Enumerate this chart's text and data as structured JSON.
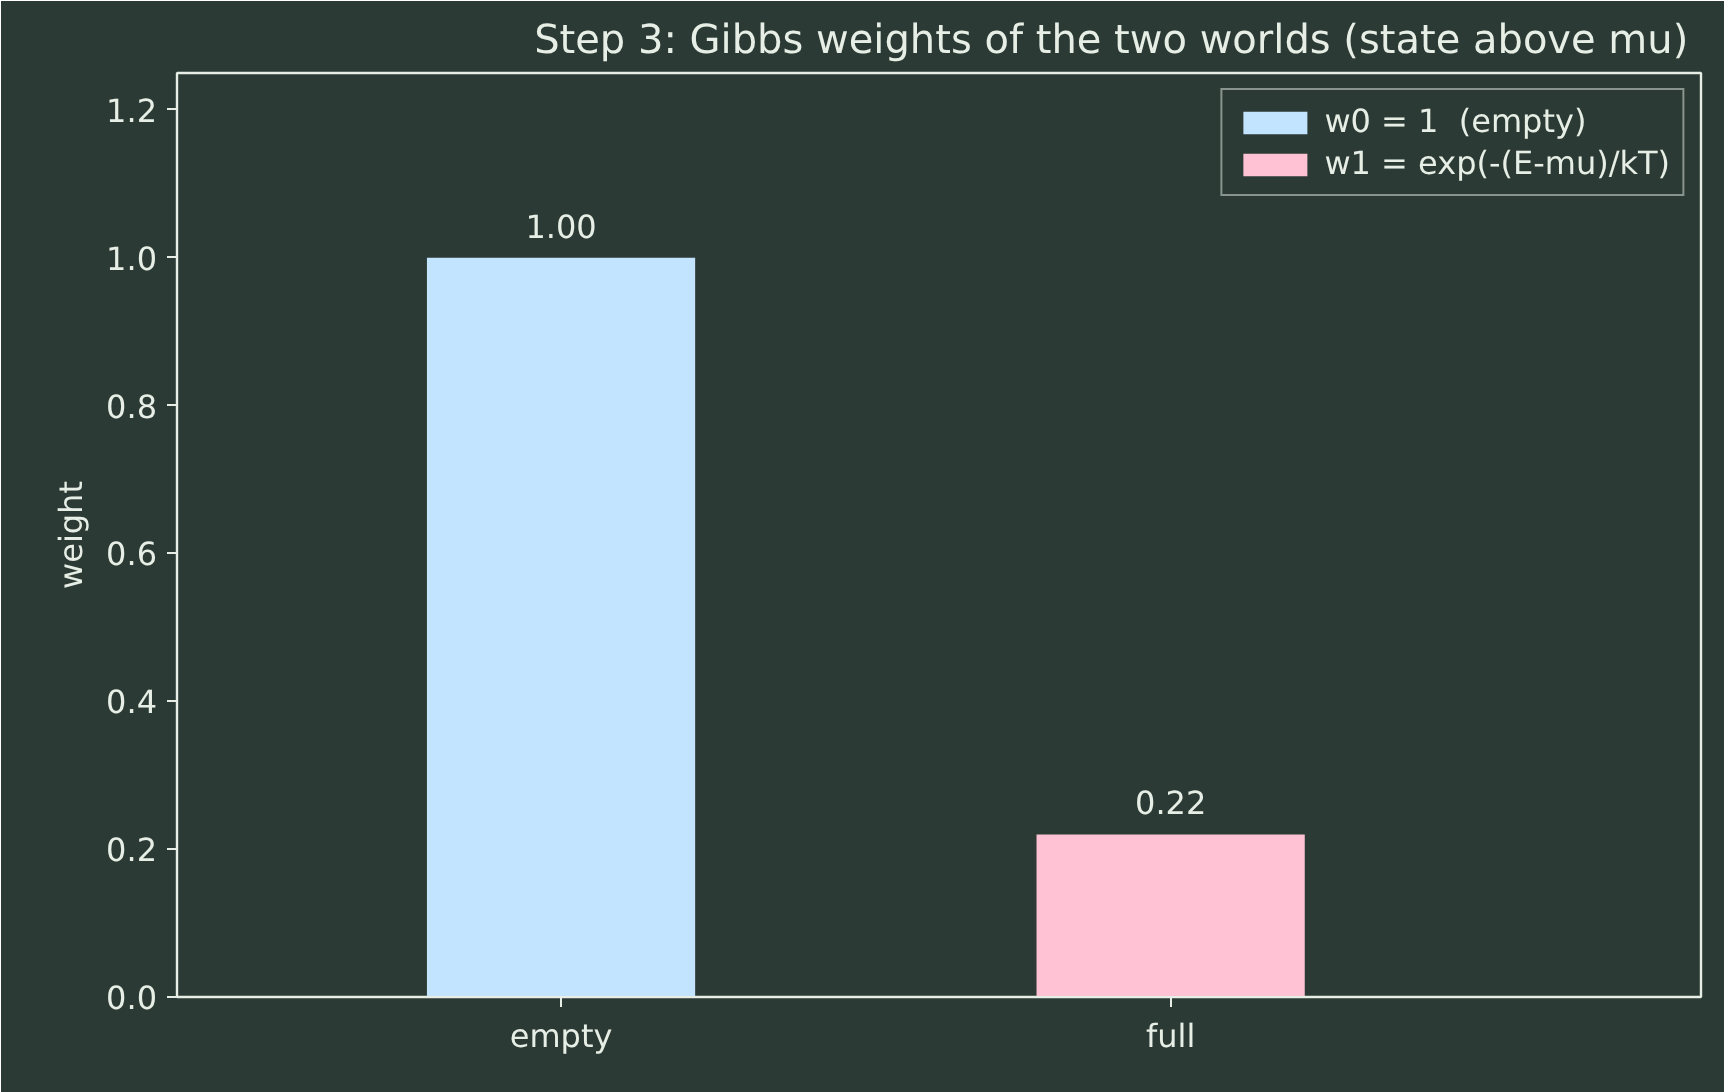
{
  "chart_data": {
    "type": "bar",
    "title": "Step 3: Gibbs weights of the two worlds  (state above mu)",
    "ylabel": "weight",
    "categories": [
      "empty",
      "full"
    ],
    "series": [
      {
        "name": "w0 = 1  (empty)",
        "color": "#c2e4ff",
        "values": [
          1.0,
          null
        ],
        "value_labels": [
          "1.00",
          null
        ]
      },
      {
        "name": "w1 = exp(-(E-mu)/kT)",
        "color": "#ffc2d4",
        "values": [
          null,
          0.22
        ],
        "value_labels": [
          null,
          "0.22"
        ]
      }
    ],
    "ylim": [
      0,
      1.25
    ],
    "yticks": [
      {
        "value": 0,
        "label": "0.0"
      },
      0.2,
      0.4,
      0.6,
      0.8,
      {
        "value": 1,
        "label": "1.0"
      },
      1.2
    ],
    "grid": false,
    "legend": "top right"
  }
}
